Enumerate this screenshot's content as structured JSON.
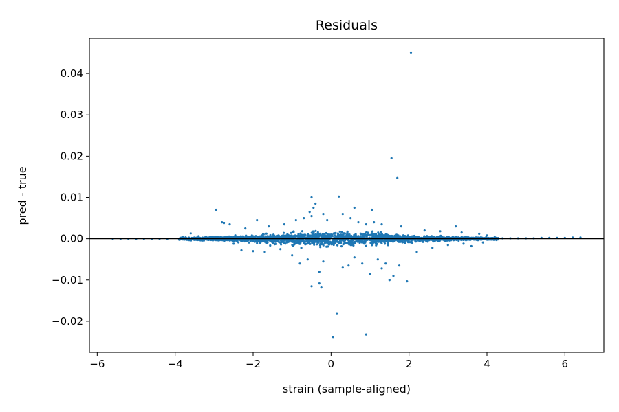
{
  "chart_data": {
    "type": "scatter",
    "title": "Residuals",
    "xlabel": "strain (sample-aligned)",
    "ylabel": "pred - true",
    "xlim": [
      -6.2,
      7.0
    ],
    "ylim": [
      -0.0275,
      0.0485
    ],
    "xticks": [
      -6,
      -4,
      -2,
      0,
      2,
      4,
      6
    ],
    "xtick_labels": [
      "−6",
      "−4",
      "−2",
      "0",
      "2",
      "4",
      "6"
    ],
    "yticks": [
      -0.02,
      -0.01,
      0.0,
      0.01,
      0.02,
      0.03,
      0.04
    ],
    "ytick_labels": [
      "−0.02",
      "−0.01",
      "0.00",
      "0.01",
      "0.02",
      "0.03",
      "0.04"
    ],
    "reference_line_y": 0.0,
    "grid": false,
    "colors": {
      "points": "#1f77b4",
      "reference_line": "#000000",
      "axes": "#000000"
    },
    "series": [
      {
        "points": [
          [
            -5.6,
            0.0
          ],
          [
            -5.4,
            0.0
          ],
          [
            -5.2,
            0.0
          ],
          [
            -5.0,
            0.0
          ],
          [
            -4.8,
            0.0
          ],
          [
            -4.6,
            0.0
          ],
          [
            -4.4,
            0.0
          ],
          [
            -4.2,
            0.0
          ],
          [
            -3.8,
            0.0005
          ],
          [
            -3.6,
            0.0013
          ],
          [
            -3.4,
            0.0006
          ],
          [
            -3.2,
            0.0004
          ],
          [
            -2.95,
            0.007
          ],
          [
            -2.8,
            0.004
          ],
          [
            -2.75,
            0.0038
          ],
          [
            -2.6,
            0.0035
          ],
          [
            -2.5,
            -0.0012
          ],
          [
            -2.3,
            -0.0028
          ],
          [
            -2.2,
            0.0025
          ],
          [
            -2.0,
            -0.003
          ],
          [
            -1.9,
            0.0045
          ],
          [
            -1.7,
            -0.0032
          ],
          [
            -1.6,
            0.003
          ],
          [
            -1.3,
            -0.0025
          ],
          [
            -1.2,
            0.0035
          ],
          [
            -1.0,
            -0.004
          ],
          [
            -0.9,
            0.0045
          ],
          [
            -0.8,
            -0.006
          ],
          [
            -0.7,
            0.005
          ],
          [
            -0.6,
            -0.005
          ],
          [
            -0.5,
            0.0055
          ],
          [
            -0.55,
            0.0065
          ],
          [
            -0.5,
            0.01
          ],
          [
            -0.45,
            0.0075
          ],
          [
            -0.4,
            0.0085
          ],
          [
            -0.3,
            -0.008
          ],
          [
            -0.2,
            0.006
          ],
          [
            -0.2,
            -0.0055
          ],
          [
            -0.1,
            0.0045
          ],
          [
            -0.5,
            -0.0115
          ],
          [
            -0.3,
            -0.0108
          ],
          [
            -0.25,
            -0.0118
          ],
          [
            0.05,
            -0.0238
          ],
          [
            0.15,
            -0.0182
          ],
          [
            0.2,
            0.0102
          ],
          [
            0.3,
            0.006
          ],
          [
            0.3,
            -0.007
          ],
          [
            0.45,
            -0.0065
          ],
          [
            0.5,
            0.005
          ],
          [
            0.6,
            0.0075
          ],
          [
            0.6,
            -0.0045
          ],
          [
            0.7,
            0.004
          ],
          [
            0.8,
            -0.006
          ],
          [
            0.9,
            0.0035
          ],
          [
            0.9,
            -0.0232
          ],
          [
            1.0,
            -0.0085
          ],
          [
            1.05,
            0.007
          ],
          [
            1.1,
            0.004
          ],
          [
            1.2,
            -0.005
          ],
          [
            1.3,
            -0.0072
          ],
          [
            1.3,
            0.0035
          ],
          [
            1.4,
            -0.006
          ],
          [
            1.5,
            -0.01
          ],
          [
            1.55,
            0.0195
          ],
          [
            1.6,
            -0.009
          ],
          [
            1.7,
            0.0147
          ],
          [
            1.75,
            -0.0065
          ],
          [
            1.8,
            0.003
          ],
          [
            1.95,
            -0.0103
          ],
          [
            2.05,
            0.0451
          ],
          [
            2.2,
            -0.0032
          ],
          [
            2.4,
            0.002
          ],
          [
            2.6,
            -0.0022
          ],
          [
            2.8,
            0.0018
          ],
          [
            3.0,
            -0.0015
          ],
          [
            3.2,
            0.003
          ],
          [
            3.35,
            0.0015
          ],
          [
            3.4,
            -0.0012
          ],
          [
            3.6,
            -0.0018
          ],
          [
            3.8,
            0.0012
          ],
          [
            3.9,
            -0.0009
          ],
          [
            4.0,
            0.0008
          ],
          [
            4.2,
            0.0004
          ],
          [
            4.4,
            0.0001
          ],
          [
            4.6,
            0.0001
          ],
          [
            4.8,
            0.0001
          ],
          [
            5.0,
            0.0001
          ],
          [
            5.2,
            0.0001
          ],
          [
            5.4,
            0.0002
          ],
          [
            5.6,
            0.0002
          ],
          [
            5.8,
            0.0002
          ],
          [
            6.0,
            0.0002
          ],
          [
            6.2,
            0.0003
          ],
          [
            6.4,
            0.0003
          ]
        ]
      }
    ]
  }
}
